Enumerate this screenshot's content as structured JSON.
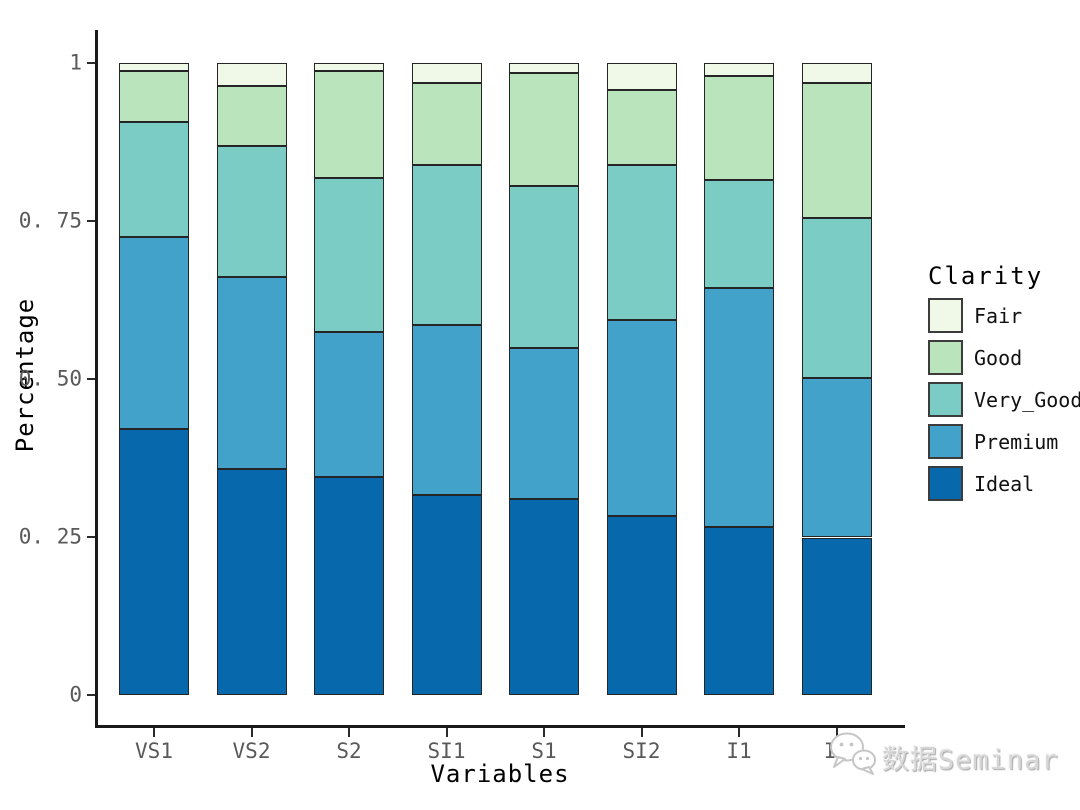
{
  "chart_data": {
    "type": "bar",
    "subtype": "stacked-percent",
    "title": "",
    "xlabel": "Variables",
    "ylabel": "Percentage",
    "legend_title": "Clarity",
    "legend_position": "right",
    "grid": false,
    "ylim": [
      0,
      1
    ],
    "categories": [
      "VS1",
      "VS2",
      "S2",
      "SI1",
      "S1",
      "SI2",
      "I1",
      "IF"
    ],
    "y_ticks": [
      {
        "value": 1,
        "label": "1"
      },
      {
        "value": 0.75,
        "label": "0. 75"
      },
      {
        "value": 0.5,
        "label": "0. 50"
      },
      {
        "value": 0.25,
        "label": "0. 25"
      },
      {
        "value": 0,
        "label": "0"
      }
    ],
    "stack_order_top_to_bottom": [
      "Fair",
      "Good",
      "Very_Good",
      "Premium",
      "Ideal"
    ],
    "series": [
      {
        "name": "Fair",
        "color": "#f0f9e8",
        "values": [
          0.013,
          0.037,
          0.013,
          0.033,
          0.017,
          0.043,
          0.022,
          0.032
        ]
      },
      {
        "name": "Good",
        "color": "#bae4bc",
        "values": [
          0.081,
          0.095,
          0.169,
          0.129,
          0.179,
          0.119,
          0.164,
          0.214
        ]
      },
      {
        "name": "Very_Good",
        "color": "#7bccc4",
        "values": [
          0.182,
          0.207,
          0.244,
          0.253,
          0.256,
          0.245,
          0.171,
          0.253
        ]
      },
      {
        "name": "Premium",
        "color": "#43a2ca",
        "values": [
          0.304,
          0.304,
          0.23,
          0.269,
          0.238,
          0.31,
          0.378,
          0.252
        ]
      },
      {
        "name": "Ideal",
        "color": "#0868ac",
        "values": [
          0.42,
          0.357,
          0.344,
          0.316,
          0.31,
          0.283,
          0.265,
          0.249
        ]
      }
    ],
    "legend_entries": [
      "Fair",
      "Good",
      "Very_Good",
      "Premium",
      "Ideal"
    ]
  },
  "watermark": {
    "text": "数据Seminar",
    "icon": "wechat-chat-bubbles-icon"
  },
  "style_colors": {
    "axis_line": "#1a1a1a",
    "tick_text": "#595959",
    "bar_border": "#252525",
    "watermark_text": "#d6d6d6"
  }
}
